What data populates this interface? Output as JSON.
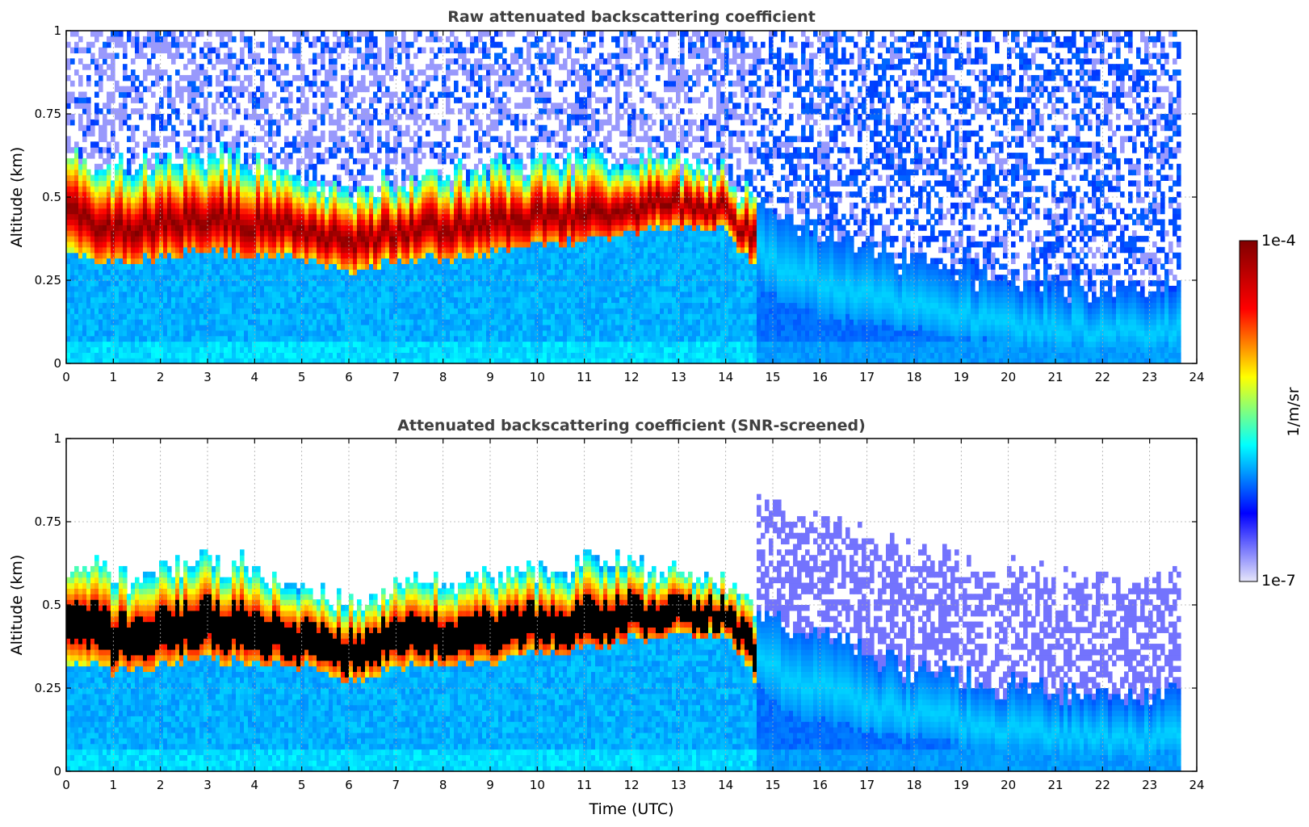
{
  "chart_data": [
    {
      "type": "heatmap",
      "title": "Raw attenuated backscattering coefficient",
      "xlabel": "",
      "ylabel": "Altitude (km)",
      "xlim": [
        0,
        24
      ],
      "ylim": [
        0,
        1
      ],
      "x_ticks": [
        0,
        1,
        2,
        3,
        4,
        5,
        6,
        7,
        8,
        9,
        10,
        11,
        12,
        13,
        14,
        15,
        16,
        17,
        18,
        19,
        20,
        21,
        22,
        23,
        24
      ],
      "y_ticks": [
        0,
        0.25,
        0.5,
        0.75,
        1
      ],
      "y_tick_labels": [
        "0",
        "0.25",
        "0.5",
        "0.75",
        "1"
      ],
      "grid": true,
      "screened": false,
      "layer_top_km": [
        0.62,
        0.58,
        0.6,
        0.63,
        0.6,
        0.55,
        0.5,
        0.55,
        0.57,
        0.58,
        0.6,
        0.63,
        0.62,
        0.6,
        0.56,
        0.45,
        0.4,
        0.35,
        0.3,
        0.28,
        0.25,
        0.24,
        0.22,
        0.22
      ],
      "layer_peak_km": [
        0.46,
        0.4,
        0.42,
        0.44,
        0.42,
        0.4,
        0.36,
        0.4,
        0.41,
        0.42,
        0.44,
        0.45,
        0.47,
        0.48,
        0.46,
        0.3,
        0.25,
        0.2,
        0.17,
        0.15,
        0.12,
        0.11,
        0.1,
        0.1
      ],
      "layer_base_km": [
        0.33,
        0.3,
        0.32,
        0.34,
        0.32,
        0.32,
        0.27,
        0.31,
        0.32,
        0.33,
        0.36,
        0.37,
        0.4,
        0.41,
        0.4,
        0.2,
        0.15,
        0.12,
        0.1,
        0.08,
        0.06,
        0.05,
        0.05,
        0.05
      ]
    },
    {
      "type": "heatmap",
      "title": "Attenuated backscattering coefficient (SNR-screened)",
      "xlabel": "Time (UTC)",
      "ylabel": "Altitude (km)",
      "xlim": [
        0,
        24
      ],
      "ylim": [
        0,
        1
      ],
      "x_ticks": [
        0,
        1,
        2,
        3,
        4,
        5,
        6,
        7,
        8,
        9,
        10,
        11,
        12,
        13,
        14,
        15,
        16,
        17,
        18,
        19,
        20,
        21,
        22,
        23,
        24
      ],
      "y_ticks": [
        0,
        0.25,
        0.5,
        0.75,
        1
      ],
      "y_tick_labels": [
        "0",
        "0.25",
        "0.5",
        "0.75",
        "1"
      ],
      "grid": true,
      "screened": true,
      "saturated_color": "#000000"
    }
  ],
  "colorbar": {
    "label": "1/m/sr",
    "max_label": "1e-4",
    "min_label": "1e-7",
    "scale": "log",
    "range": [
      1e-07,
      0.0001
    ],
    "colormap": "jet",
    "colors": [
      "#e6e6fa",
      "#0000ff",
      "#00ffff",
      "#ffff00",
      "#ff0000",
      "#800000"
    ]
  }
}
